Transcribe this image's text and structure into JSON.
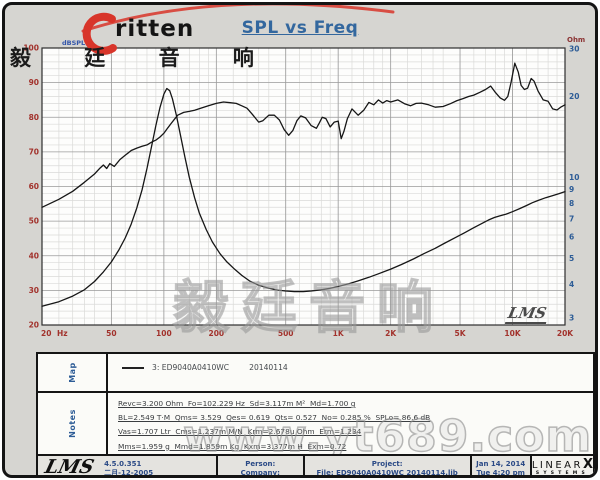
{
  "window": {
    "title": "SPL vs Freq"
  },
  "branding": {
    "logo_text": "ritten",
    "logo_cn": "毅 廷 音 响",
    "watermark_cn": "毅廷音响",
    "watermark_url": "www.yt689.com",
    "lms_chart": "LMS",
    "lms_bar": "LMS"
  },
  "chart_data": {
    "type": "line",
    "title": "SPL vs Freq",
    "x_axis": {
      "label": "Hz",
      "scale": "log",
      "min": 20,
      "max": 20000,
      "ticks": [
        20,
        50,
        100,
        200,
        500,
        1000,
        2000,
        5000,
        10000,
        20000
      ],
      "tick_labels": [
        "20",
        "50",
        "100",
        "200",
        "500",
        "1K",
        "2K",
        "5K",
        "10K",
        "20K"
      ],
      "minor_multipliers": [
        1.25,
        1.5,
        1.75,
        2,
        2.5,
        3,
        3.5,
        4,
        4.5,
        5,
        6,
        7,
        8,
        9
      ]
    },
    "y_left": {
      "label": "dBSPL",
      "scale": "linear",
      "min": 20,
      "max": 100,
      "major_step": 10,
      "minor_step": 2,
      "ticks": [
        100,
        90,
        80,
        70,
        60,
        50,
        40,
        30,
        20
      ]
    },
    "y_right": {
      "label": "Ohm",
      "scale": "log",
      "min": 3,
      "max": 30,
      "ticks": [
        30,
        20,
        10,
        9,
        8,
        7,
        6,
        5,
        4,
        3
      ]
    },
    "style": {
      "freq_label_color": "#a2322c",
      "spl_label_color": "#a2322c",
      "ohm_label_color": "#2d5c96",
      "axis_title_left_color": "#3355aa",
      "axis_title_right_color": "#8b3333",
      "grid_minor": "#dadad8",
      "grid_major": "#9a9a9a",
      "plot_border": "#2e2e2e",
      "plot_bg": "#fdfdfc",
      "curve_color": "#161616"
    },
    "series": [
      {
        "name": "SPL ED9040A0410WC 20140114",
        "axis": "left",
        "points": [
          [
            20,
            54
          ],
          [
            25,
            56.3
          ],
          [
            30,
            58.6
          ],
          [
            35,
            61.2
          ],
          [
            40,
            63.6
          ],
          [
            43,
            65.3
          ],
          [
            45,
            66.2
          ],
          [
            47,
            65.2
          ],
          [
            49,
            66.6
          ],
          [
            52,
            65.8
          ],
          [
            56,
            67.8
          ],
          [
            60,
            69
          ],
          [
            65,
            70.4
          ],
          [
            70,
            71.1
          ],
          [
            75,
            71.6
          ],
          [
            80,
            72
          ],
          [
            85,
            72.8
          ],
          [
            90,
            73.4
          ],
          [
            95,
            74.3
          ],
          [
            100,
            75.4
          ],
          [
            105,
            76.8
          ],
          [
            110,
            78.2
          ],
          [
            115,
            79.4
          ],
          [
            120,
            80.6
          ],
          [
            130,
            81.4
          ],
          [
            140,
            81.7
          ],
          [
            150,
            82
          ],
          [
            165,
            82.7
          ],
          [
            180,
            83.3
          ],
          [
            200,
            84
          ],
          [
            220,
            84.4
          ],
          [
            240,
            84.2
          ],
          [
            260,
            84
          ],
          [
            280,
            83.3
          ],
          [
            300,
            82.6
          ],
          [
            320,
            81
          ],
          [
            350,
            78.6
          ],
          [
            370,
            79
          ],
          [
            400,
            80.6
          ],
          [
            430,
            80.6
          ],
          [
            460,
            79.2
          ],
          [
            490,
            76.4
          ],
          [
            520,
            74.8
          ],
          [
            550,
            76.2
          ],
          [
            580,
            79
          ],
          [
            610,
            80.4
          ],
          [
            650,
            79.8
          ],
          [
            700,
            77.6
          ],
          [
            750,
            76.8
          ],
          [
            780,
            78.4
          ],
          [
            810,
            80
          ],
          [
            850,
            79.6
          ],
          [
            900,
            77.2
          ],
          [
            950,
            78.6
          ],
          [
            1000,
            78.9
          ],
          [
            1040,
            73.8
          ],
          [
            1080,
            76
          ],
          [
            1130,
            79.6
          ],
          [
            1200,
            82.4
          ],
          [
            1300,
            80.6
          ],
          [
            1400,
            82
          ],
          [
            1500,
            84.3
          ],
          [
            1600,
            83.6
          ],
          [
            1700,
            85
          ],
          [
            1800,
            84.1
          ],
          [
            1900,
            84.8
          ],
          [
            2000,
            84.4
          ],
          [
            2200,
            85
          ],
          [
            2400,
            83.9
          ],
          [
            2600,
            83.3
          ],
          [
            2800,
            84
          ],
          [
            3000,
            84.1
          ],
          [
            3300,
            83.6
          ],
          [
            3600,
            82.9
          ],
          [
            4000,
            83.1
          ],
          [
            4400,
            83.9
          ],
          [
            4800,
            84.8
          ],
          [
            5200,
            85.4
          ],
          [
            5600,
            86
          ],
          [
            6000,
            86.4
          ],
          [
            6500,
            87.2
          ],
          [
            7000,
            88
          ],
          [
            7500,
            89
          ],
          [
            8000,
            87.1
          ],
          [
            8500,
            85.6
          ],
          [
            9000,
            84.9
          ],
          [
            9400,
            86
          ],
          [
            9800,
            90
          ],
          [
            10300,
            95.6
          ],
          [
            10800,
            93
          ],
          [
            11200,
            89.2
          ],
          [
            11700,
            88
          ],
          [
            12200,
            88.4
          ],
          [
            12800,
            91.2
          ],
          [
            13300,
            90.4
          ],
          [
            14000,
            87.6
          ],
          [
            15000,
            85
          ],
          [
            16000,
            84.6
          ],
          [
            17000,
            82.4
          ],
          [
            18000,
            82.1
          ],
          [
            19000,
            83
          ],
          [
            20000,
            83.6
          ]
        ]
      },
      {
        "name": "Impedance ED9040A0410WC 20140114",
        "axis": "right",
        "points": [
          [
            20,
            3.32
          ],
          [
            25,
            3.45
          ],
          [
            30,
            3.62
          ],
          [
            35,
            3.82
          ],
          [
            40,
            4.1
          ],
          [
            45,
            4.45
          ],
          [
            50,
            4.85
          ],
          [
            55,
            5.35
          ],
          [
            60,
            5.95
          ],
          [
            65,
            6.7
          ],
          [
            70,
            7.7
          ],
          [
            75,
            9.0
          ],
          [
            80,
            10.8
          ],
          [
            85,
            13.0
          ],
          [
            90,
            15.6
          ],
          [
            95,
            18.2
          ],
          [
            100,
            20.4
          ],
          [
            104,
            21.4
          ],
          [
            108,
            21.0
          ],
          [
            112,
            19.6
          ],
          [
            118,
            17.0
          ],
          [
            125,
            14.2
          ],
          [
            132,
            11.9
          ],
          [
            140,
            10.0
          ],
          [
            150,
            8.4
          ],
          [
            160,
            7.35
          ],
          [
            175,
            6.4
          ],
          [
            190,
            5.75
          ],
          [
            210,
            5.2
          ],
          [
            230,
            4.85
          ],
          [
            255,
            4.55
          ],
          [
            280,
            4.32
          ],
          [
            310,
            4.12
          ],
          [
            350,
            3.97
          ],
          [
            400,
            3.87
          ],
          [
            450,
            3.81
          ],
          [
            500,
            3.78
          ],
          [
            560,
            3.76
          ],
          [
            630,
            3.76
          ],
          [
            700,
            3.78
          ],
          [
            800,
            3.82
          ],
          [
            900,
            3.87
          ],
          [
            1000,
            3.93
          ],
          [
            1150,
            4.02
          ],
          [
            1300,
            4.12
          ],
          [
            1500,
            4.25
          ],
          [
            1700,
            4.38
          ],
          [
            2000,
            4.56
          ],
          [
            2300,
            4.74
          ],
          [
            2700,
            4.97
          ],
          [
            3100,
            5.2
          ],
          [
            3600,
            5.45
          ],
          [
            4100,
            5.7
          ],
          [
            4700,
            5.97
          ],
          [
            5300,
            6.22
          ],
          [
            6000,
            6.5
          ],
          [
            6700,
            6.75
          ],
          [
            7300,
            6.95
          ],
          [
            7900,
            7.1
          ],
          [
            8500,
            7.2
          ],
          [
            9200,
            7.3
          ],
          [
            10000,
            7.45
          ],
          [
            11000,
            7.65
          ],
          [
            12000,
            7.85
          ],
          [
            13000,
            8.05
          ],
          [
            14000,
            8.2
          ],
          [
            15500,
            8.4
          ],
          [
            17000,
            8.55
          ],
          [
            18500,
            8.7
          ],
          [
            20000,
            8.85
          ]
        ]
      }
    ]
  },
  "map": {
    "label": "Map",
    "legend": {
      "curve": "3: ED9040A0410WC",
      "date": "20140114"
    }
  },
  "notes": {
    "label": "Notes",
    "lines": [
      "Revc=3.200 Ohm  Fo=102.229 Hz  Sd=3.117m M²  Md=1.700 g",
      "BL=2.549 T·M  Qms= 3.529  Qes= 0.619  Qts= 0.527  No= 0.285 %  SPLo= 86.6 dB",
      "Vas=1.707 Ltr  Cms=1.237m M/N  Krm=2.678u Ohm  Erm=1.234",
      "Mms=1.959 g  Mmd=1.859m Kg  Kxm=3.377m H  Exm=0.72"
    ]
  },
  "footer": {
    "version": "4.5.0.351",
    "version_date": "二月-12-2005",
    "person_label": "Person:",
    "company_label": "Company:",
    "project_label": "Project:",
    "file_line": "File: ED9040A0410WC  20140114.lib",
    "date": "Jan 14, 2014",
    "time": "Tue  4:20 pm",
    "brand": {
      "main": "LINEAR",
      "x": "X",
      "sub": "SYSTEMS"
    }
  }
}
